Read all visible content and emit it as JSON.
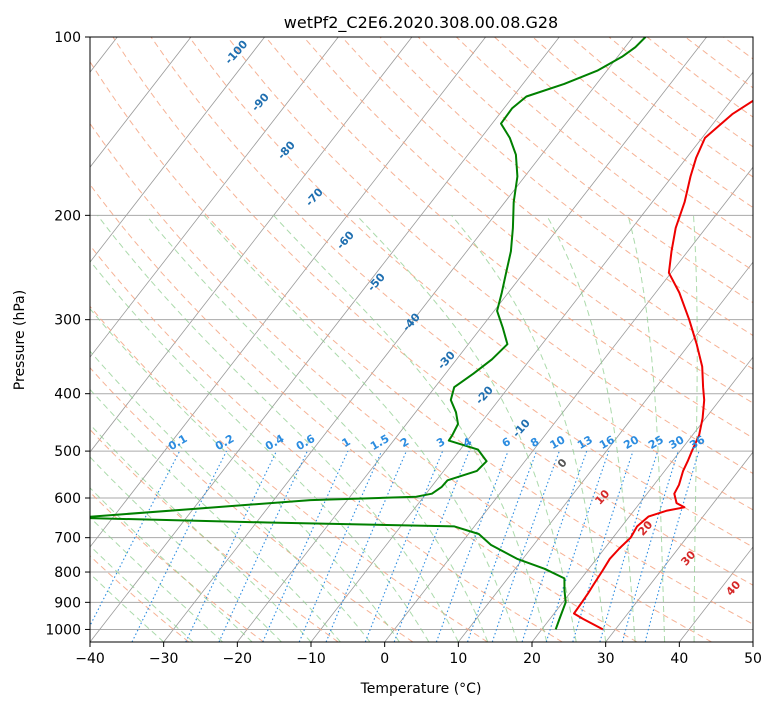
{
  "chart_data": {
    "type": "line",
    "title": "wetPf2_C2E6.2020.308.00.08.G28",
    "xlabel": "Temperature (°C)",
    "ylabel": "Pressure (hPa)",
    "xlim": [
      -40,
      50
    ],
    "ylim": [
      1050,
      100
    ],
    "y_scale": "log",
    "x_ticks": [
      -40,
      -30,
      -20,
      -10,
      0,
      10,
      20,
      30,
      40,
      50
    ],
    "y_ticks": [
      1000,
      900,
      800,
      700,
      600,
      500,
      400,
      300,
      200,
      100
    ],
    "x_tick_labels": [
      "−40",
      "−30",
      "−20",
      "−10",
      "0",
      "10",
      "20",
      "30",
      "40",
      "50"
    ],
    "y_tick_labels": [
      "1000",
      "900",
      "800",
      "700",
      "600",
      "500",
      "400",
      "300",
      "200",
      "100"
    ],
    "grid": true,
    "series": [
      {
        "role": "temperature",
        "color": "#ee0000",
        "points": [
          [
            28.3,
            1000
          ],
          [
            24.5,
            960
          ],
          [
            22.7,
            940
          ],
          [
            22.6,
            900
          ],
          [
            22.5,
            870
          ],
          [
            22.3,
            840
          ],
          [
            22.1,
            800
          ],
          [
            21.8,
            760
          ],
          [
            22.0,
            730
          ],
          [
            22.4,
            700
          ],
          [
            22.1,
            670
          ],
          [
            22.6,
            645
          ],
          [
            24.5,
            630
          ],
          [
            26.5,
            622
          ],
          [
            25.0,
            612
          ],
          [
            23.7,
            590
          ],
          [
            23.4,
            570
          ],
          [
            22.5,
            540
          ],
          [
            22.1,
            520
          ],
          [
            21.6,
            500
          ],
          [
            20.9,
            470
          ],
          [
            19.6,
            440
          ],
          [
            17.9,
            410
          ],
          [
            16.4,
            390
          ],
          [
            14.1,
            360
          ],
          [
            11.0,
            330
          ],
          [
            7.4,
            300
          ],
          [
            3.2,
            270
          ],
          [
            -0.3,
            250
          ],
          [
            -2.2,
            230
          ],
          [
            -4.1,
            210
          ],
          [
            -5.6,
            190
          ],
          [
            -7.5,
            172
          ],
          [
            -8.7,
            160
          ],
          [
            -9.6,
            148
          ],
          [
            -8.4,
            135
          ],
          [
            -6.3,
            125
          ],
          [
            -5.3,
            116
          ],
          [
            -5.4,
            108
          ],
          [
            -5.0,
            100
          ]
        ]
      },
      {
        "role": "dewpoint",
        "color": "#008000",
        "points": [
          [
            21.9,
            1000
          ],
          [
            21.3,
            960
          ],
          [
            20.4,
            900
          ],
          [
            19.0,
            860
          ],
          [
            17.7,
            820
          ],
          [
            14.0,
            790
          ],
          [
            9.2,
            760
          ],
          [
            4.2,
            720
          ],
          [
            1.4,
            690
          ],
          [
            -2.7,
            670
          ],
          [
            -28.5,
            660
          ],
          [
            -55.0,
            648
          ],
          [
            -25.0,
            605
          ],
          [
            -16.0,
            600
          ],
          [
            -11.0,
            597
          ],
          [
            -9.2,
            590
          ],
          [
            -8.6,
            575
          ],
          [
            -8.5,
            560
          ],
          [
            -5.5,
            540
          ],
          [
            -5.2,
            520
          ],
          [
            -7.6,
            497
          ],
          [
            -12.5,
            480
          ],
          [
            -12.6,
            470
          ],
          [
            -13.0,
            450
          ],
          [
            -14.5,
            430
          ],
          [
            -16.5,
            410
          ],
          [
            -17.4,
            390
          ],
          [
            -16.2,
            370
          ],
          [
            -15.2,
            350
          ],
          [
            -14.7,
            330
          ],
          [
            -17.0,
            310
          ],
          [
            -19.6,
            290
          ],
          [
            -20.9,
            270
          ],
          [
            -22.4,
            250
          ],
          [
            -24.0,
            230
          ],
          [
            -26.2,
            210
          ],
          [
            -28.8,
            190
          ],
          [
            -31.0,
            172
          ],
          [
            -33.5,
            158
          ],
          [
            -36.1,
            148
          ],
          [
            -38.8,
            140
          ],
          [
            -38.9,
            132
          ],
          [
            -38.2,
            126
          ],
          [
            -34.4,
            120
          ],
          [
            -31.3,
            114
          ],
          [
            -29.4,
            108
          ],
          [
            -28.6,
            104
          ],
          [
            -28.3,
            100
          ]
        ]
      }
    ],
    "dry_adiabat_labels": [
      "-100",
      "-90",
      "-80",
      "-70",
      "-60",
      "-50",
      "-40",
      "-30",
      "-20",
      "-10",
      "0",
      "10",
      "20",
      "30",
      "40"
    ],
    "mixing_ratio_labels": [
      "0.1",
      "0.2",
      "0.4",
      "0.6",
      "1",
      "1.5",
      "2",
      "3",
      "4",
      "6",
      "8",
      "10",
      "13",
      "16",
      "20",
      "25",
      "30",
      "36"
    ],
    "colors": {
      "dry_adiabat": "#f4a582",
      "moist_adiabat": "#8fce8f",
      "mixing_ratio": "#2b8ce0",
      "isotherm": "#555555",
      "dry_label_cold": "#1f6fb0",
      "dry_label_warm": "#d62828"
    }
  }
}
